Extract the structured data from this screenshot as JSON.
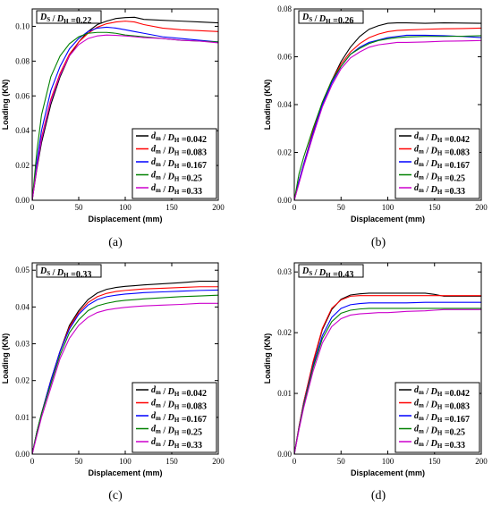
{
  "chart_data": [
    {
      "type": "line",
      "panel_label": "(a)",
      "annotation": "D_S / D_H =0.22",
      "xlabel": "Displacement (mm)",
      "ylabel": "Loading (KN)",
      "xlim": [
        0,
        200
      ],
      "ylim": [
        0,
        0.11
      ],
      "xticks": [
        0,
        50,
        100,
        150,
        200
      ],
      "yticks": [
        0.0,
        0.02,
        0.04,
        0.06,
        0.08,
        0.1
      ],
      "ytick_labels": [
        "0.00",
        "0.02",
        "0.04",
        "0.06",
        "0.08",
        "0.10"
      ],
      "legend_position": "bottom-right",
      "series": [
        {
          "name": "d_m / D_H =0.042",
          "color": "#000000",
          "x": [
            0,
            5,
            10,
            20,
            30,
            40,
            50,
            60,
            70,
            80,
            90,
            100,
            110,
            120,
            140,
            160,
            180,
            200
          ],
          "y": [
            0,
            0.018,
            0.033,
            0.055,
            0.071,
            0.083,
            0.091,
            0.097,
            0.101,
            0.103,
            0.1045,
            0.105,
            0.1052,
            0.104,
            0.1035,
            0.103,
            0.1025,
            0.102
          ]
        },
        {
          "name": "d_m / D_H =0.083",
          "color": "#ff0000",
          "x": [
            0,
            5,
            10,
            20,
            30,
            40,
            50,
            60,
            70,
            80,
            90,
            100,
            110,
            120,
            140,
            160,
            180,
            200
          ],
          "y": [
            0,
            0.02,
            0.036,
            0.058,
            0.073,
            0.084,
            0.091,
            0.096,
            0.0995,
            0.1015,
            0.1025,
            0.103,
            0.1025,
            0.101,
            0.099,
            0.098,
            0.0975,
            0.097
          ]
        },
        {
          "name": "d_m / D_H =0.167",
          "color": "#0000ff",
          "x": [
            0,
            5,
            10,
            20,
            30,
            40,
            50,
            60,
            70,
            80,
            90,
            100,
            110,
            120,
            140,
            160,
            180,
            200
          ],
          "y": [
            0,
            0.022,
            0.04,
            0.063,
            0.077,
            0.087,
            0.093,
            0.097,
            0.099,
            0.0995,
            0.099,
            0.098,
            0.097,
            0.096,
            0.094,
            0.093,
            0.092,
            0.091
          ]
        },
        {
          "name": "d_m / D_H =0.25",
          "color": "#008000",
          "x": [
            0,
            5,
            10,
            20,
            30,
            40,
            50,
            60,
            70,
            80,
            90,
            100,
            110,
            120,
            140,
            160,
            180,
            200
          ],
          "y": [
            0,
            0.028,
            0.049,
            0.071,
            0.083,
            0.09,
            0.094,
            0.096,
            0.0965,
            0.0965,
            0.096,
            0.095,
            0.0945,
            0.094,
            0.093,
            0.092,
            0.0915,
            0.091
          ]
        },
        {
          "name": "d_m / D_H =0.33",
          "color": "#cc00cc",
          "x": [
            0,
            5,
            10,
            20,
            30,
            40,
            50,
            60,
            70,
            80,
            90,
            100,
            110,
            120,
            140,
            160,
            180,
            200
          ],
          "y": [
            0,
            0.019,
            0.035,
            0.057,
            0.072,
            0.083,
            0.0895,
            0.093,
            0.0945,
            0.095,
            0.0948,
            0.0945,
            0.094,
            0.0935,
            0.093,
            0.092,
            0.0915,
            0.0905
          ]
        }
      ]
    },
    {
      "type": "line",
      "panel_label": "(b)",
      "annotation": "D_S / D_H =0.26",
      "xlabel": "Displacement (mm)",
      "ylabel": "Loading (KN)",
      "xlim": [
        0,
        200
      ],
      "ylim": [
        0,
        0.08
      ],
      "xticks": [
        0,
        50,
        100,
        150,
        200
      ],
      "yticks": [
        0.0,
        0.02,
        0.04,
        0.06,
        0.08
      ],
      "ytick_labels": [
        "0.00",
        "0.02",
        "0.04",
        "0.06",
        "0.08"
      ],
      "legend_position": "bottom-right",
      "series": [
        {
          "name": "d_m / D_H =0.042",
          "color": "#000000",
          "x": [
            0,
            5,
            10,
            20,
            30,
            40,
            50,
            60,
            70,
            80,
            90,
            100,
            110,
            120,
            140,
            160,
            180,
            200
          ],
          "y": [
            0,
            0.008,
            0.015,
            0.028,
            0.04,
            0.05,
            0.058,
            0.064,
            0.0685,
            0.0715,
            0.073,
            0.074,
            0.0742,
            0.0742,
            0.074,
            0.0742,
            0.0741,
            0.074
          ]
        },
        {
          "name": "d_m / D_H =0.083",
          "color": "#ff0000",
          "x": [
            0,
            5,
            10,
            20,
            30,
            40,
            50,
            60,
            70,
            80,
            90,
            100,
            110,
            120,
            140,
            160,
            180,
            200
          ],
          "y": [
            0,
            0.008,
            0.015,
            0.029,
            0.041,
            0.05,
            0.057,
            0.062,
            0.0655,
            0.068,
            0.0695,
            0.0705,
            0.071,
            0.0712,
            0.0715,
            0.0717,
            0.0718,
            0.072
          ]
        },
        {
          "name": "d_m / D_H =0.167",
          "color": "#0000ff",
          "x": [
            0,
            5,
            10,
            20,
            30,
            40,
            50,
            60,
            70,
            80,
            90,
            100,
            110,
            120,
            140,
            160,
            180,
            200
          ],
          "y": [
            0,
            0.008,
            0.015,
            0.028,
            0.04,
            0.049,
            0.056,
            0.061,
            0.064,
            0.066,
            0.067,
            0.068,
            0.0685,
            0.069,
            0.069,
            0.0688,
            0.0685,
            0.068
          ]
        },
        {
          "name": "d_m / D_H =0.25",
          "color": "#008000",
          "x": [
            0,
            5,
            10,
            20,
            30,
            40,
            50,
            60,
            70,
            80,
            90,
            100,
            110,
            120,
            140,
            160,
            180,
            200
          ],
          "y": [
            0,
            0.011,
            0.018,
            0.03,
            0.041,
            0.05,
            0.056,
            0.061,
            0.0635,
            0.0655,
            0.0668,
            0.0675,
            0.068,
            0.0683,
            0.0685,
            0.0685,
            0.0686,
            0.0688
          ]
        },
        {
          "name": "d_m / D_H =0.33",
          "color": "#cc00cc",
          "x": [
            0,
            5,
            10,
            20,
            30,
            40,
            50,
            60,
            70,
            80,
            90,
            100,
            110,
            120,
            140,
            160,
            180,
            200
          ],
          "y": [
            0,
            0.007,
            0.014,
            0.027,
            0.039,
            0.048,
            0.055,
            0.0595,
            0.062,
            0.064,
            0.065,
            0.0655,
            0.066,
            0.066,
            0.0662,
            0.0665,
            0.0666,
            0.0668
          ]
        }
      ]
    },
    {
      "type": "line",
      "panel_label": "(c)",
      "annotation": "D_S / D_H =0.33",
      "xlabel": "Displacement (mm)",
      "ylabel": "Loading (KN)",
      "xlim": [
        0,
        200
      ],
      "ylim": [
        0,
        0.052
      ],
      "xticks": [
        0,
        50,
        100,
        150,
        200
      ],
      "yticks": [
        0.0,
        0.01,
        0.02,
        0.03,
        0.04,
        0.05
      ],
      "ytick_labels": [
        "0.00",
        "0.01",
        "0.02",
        "0.03",
        "0.04",
        "0.05"
      ],
      "legend_position": "bottom-right",
      "series": [
        {
          "name": "d_m / D_H =0.042",
          "color": "#000000",
          "x": [
            0,
            5,
            10,
            20,
            30,
            40,
            50,
            60,
            70,
            80,
            90,
            100,
            110,
            120,
            140,
            160,
            180,
            200
          ],
          "y": [
            0,
            0.006,
            0.011,
            0.02,
            0.028,
            0.035,
            0.039,
            0.042,
            0.0438,
            0.0448,
            0.0453,
            0.0456,
            0.0458,
            0.046,
            0.0463,
            0.0466,
            0.047,
            0.047
          ]
        },
        {
          "name": "d_m / D_H =0.083",
          "color": "#ff0000",
          "x": [
            0,
            5,
            10,
            20,
            30,
            40,
            50,
            60,
            70,
            80,
            90,
            100,
            110,
            120,
            140,
            160,
            180,
            200
          ],
          "y": [
            0,
            0.006,
            0.011,
            0.02,
            0.028,
            0.0345,
            0.0385,
            0.0412,
            0.0428,
            0.0437,
            0.0442,
            0.0445,
            0.0447,
            0.0449,
            0.0451,
            0.0453,
            0.0455,
            0.0455
          ]
        },
        {
          "name": "d_m / D_H =0.167",
          "color": "#0000ff",
          "x": [
            0,
            5,
            10,
            20,
            30,
            40,
            50,
            60,
            70,
            80,
            90,
            100,
            110,
            120,
            140,
            160,
            180,
            200
          ],
          "y": [
            0,
            0.006,
            0.011,
            0.02,
            0.028,
            0.034,
            0.038,
            0.0405,
            0.042,
            0.0428,
            0.0432,
            0.0435,
            0.0437,
            0.0439,
            0.0441,
            0.0443,
            0.0445,
            0.0446
          ]
        },
        {
          "name": "d_m / D_H =0.25",
          "color": "#008000",
          "x": [
            0,
            5,
            10,
            20,
            30,
            40,
            50,
            60,
            70,
            80,
            90,
            100,
            110,
            120,
            140,
            160,
            180,
            200
          ],
          "y": [
            0,
            0.006,
            0.011,
            0.019,
            0.027,
            0.033,
            0.0365,
            0.039,
            0.0403,
            0.041,
            0.0415,
            0.0418,
            0.042,
            0.0422,
            0.0425,
            0.0428,
            0.043,
            0.0432
          ]
        },
        {
          "name": "d_m / D_H =0.33",
          "color": "#cc00cc",
          "x": [
            0,
            5,
            10,
            20,
            30,
            40,
            50,
            60,
            70,
            80,
            90,
            100,
            110,
            120,
            140,
            160,
            180,
            200
          ],
          "y": [
            0,
            0.005,
            0.01,
            0.018,
            0.026,
            0.0315,
            0.035,
            0.0372,
            0.0385,
            0.0392,
            0.0396,
            0.0399,
            0.0401,
            0.0403,
            0.0405,
            0.0407,
            0.041,
            0.041
          ]
        }
      ]
    },
    {
      "type": "line",
      "panel_label": "(d)",
      "annotation": "D_S / D_H =0.43",
      "xlabel": "Displacement (mm)",
      "ylabel": "Loading (KN)",
      "xlim": [
        0,
        200
      ],
      "ylim": [
        0,
        0.0315
      ],
      "xticks": [
        0,
        50,
        100,
        150,
        200
      ],
      "yticks": [
        0.0,
        0.01,
        0.02,
        0.03
      ],
      "ytick_labels": [
        "0.00",
        "0.01",
        "0.02",
        "0.03"
      ],
      "legend_position": "bottom-right",
      "series": [
        {
          "name": "d_m / D_H =0.042",
          "color": "#000000",
          "x": [
            0,
            5,
            10,
            20,
            30,
            40,
            50,
            60,
            70,
            80,
            90,
            100,
            110,
            120,
            140,
            150,
            160,
            180,
            200
          ],
          "y": [
            0,
            0.0045,
            0.0085,
            0.015,
            0.0205,
            0.0238,
            0.0255,
            0.0262,
            0.0264,
            0.0265,
            0.0265,
            0.0265,
            0.0265,
            0.0265,
            0.0265,
            0.0263,
            0.026,
            0.026,
            0.026
          ]
        },
        {
          "name": "d_m / D_H =0.083",
          "color": "#ff0000",
          "x": [
            0,
            5,
            10,
            20,
            30,
            40,
            50,
            60,
            70,
            80,
            90,
            100,
            110,
            120,
            140,
            150,
            160,
            180,
            200
          ],
          "y": [
            0,
            0.0045,
            0.0085,
            0.0152,
            0.0207,
            0.024,
            0.0254,
            0.026,
            0.0261,
            0.0261,
            0.0261,
            0.0261,
            0.0261,
            0.0261,
            0.0261,
            0.0261,
            0.0261,
            0.0261,
            0.0261
          ]
        },
        {
          "name": "d_m / D_H =0.167",
          "color": "#0000ff",
          "x": [
            0,
            5,
            10,
            20,
            30,
            40,
            50,
            60,
            70,
            80,
            90,
            100,
            110,
            120,
            140,
            150,
            160,
            180,
            200
          ],
          "y": [
            0,
            0.0043,
            0.0082,
            0.0145,
            0.0195,
            0.0225,
            0.024,
            0.0246,
            0.0248,
            0.0249,
            0.0249,
            0.0249,
            0.0249,
            0.0249,
            0.025,
            0.025,
            0.025,
            0.025,
            0.025
          ]
        },
        {
          "name": "d_m / D_H =0.25",
          "color": "#008000",
          "x": [
            0,
            5,
            10,
            20,
            30,
            40,
            50,
            60,
            70,
            80,
            90,
            100,
            110,
            120,
            140,
            150,
            160,
            180,
            200
          ],
          "y": [
            0,
            0.0042,
            0.008,
            0.0142,
            0.019,
            0.0218,
            0.0232,
            0.0237,
            0.0239,
            0.024,
            0.024,
            0.024,
            0.024,
            0.024,
            0.024,
            0.024,
            0.024,
            0.024,
            0.024
          ]
        },
        {
          "name": "d_m / D_H =0.33",
          "color": "#cc00cc",
          "x": [
            0,
            5,
            10,
            20,
            30,
            40,
            50,
            60,
            70,
            80,
            90,
            100,
            110,
            120,
            140,
            150,
            160,
            180,
            200
          ],
          "y": [
            0,
            0.004,
            0.0076,
            0.0136,
            0.0183,
            0.021,
            0.0223,
            0.0229,
            0.0231,
            0.0232,
            0.0233,
            0.0233,
            0.0234,
            0.0235,
            0.0236,
            0.0237,
            0.0238,
            0.0238,
            0.0238
          ]
        }
      ]
    }
  ]
}
